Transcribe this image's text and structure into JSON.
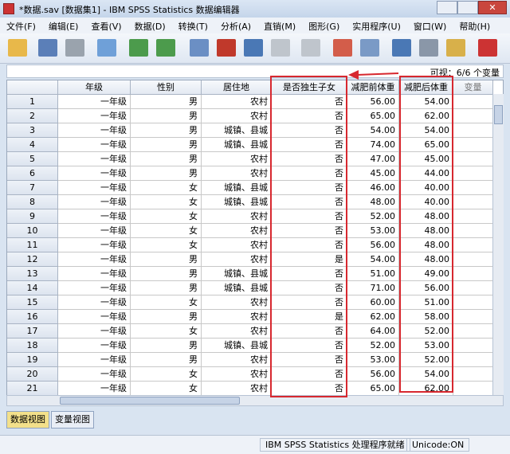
{
  "window": {
    "title": "*数据.sav [数据集1] - IBM SPSS Statistics 数据编辑器"
  },
  "menu": [
    "文件(F)",
    "编辑(E)",
    "查看(V)",
    "数据(D)",
    "转换(T)",
    "分析(A)",
    "直销(M)",
    "图形(G)",
    "实用程序(U)",
    "窗口(W)",
    "帮助(H)"
  ],
  "visible_label": "可视：6/6 个变量",
  "table": {
    "columns": [
      "年级",
      "性别",
      "居住地",
      "是否独生子女",
      "减肥前体重",
      "减肥后体重",
      "变量"
    ],
    "rows": [
      [
        1,
        "一年级",
        "男",
        "农村",
        "否",
        "56.00",
        "54.00"
      ],
      [
        2,
        "一年级",
        "男",
        "农村",
        "否",
        "65.00",
        "62.00"
      ],
      [
        3,
        "一年级",
        "男",
        "城镇、县城",
        "否",
        "54.00",
        "54.00"
      ],
      [
        4,
        "一年级",
        "男",
        "城镇、县城",
        "否",
        "74.00",
        "65.00"
      ],
      [
        5,
        "一年级",
        "男",
        "农村",
        "否",
        "47.00",
        "45.00"
      ],
      [
        6,
        "一年级",
        "男",
        "农村",
        "否",
        "45.00",
        "44.00"
      ],
      [
        7,
        "一年级",
        "女",
        "城镇、县城",
        "否",
        "46.00",
        "40.00"
      ],
      [
        8,
        "一年级",
        "女",
        "城镇、县城",
        "否",
        "48.00",
        "40.00"
      ],
      [
        9,
        "一年级",
        "女",
        "农村",
        "否",
        "52.00",
        "48.00"
      ],
      [
        10,
        "一年级",
        "女",
        "农村",
        "否",
        "53.00",
        "48.00"
      ],
      [
        11,
        "一年级",
        "女",
        "农村",
        "否",
        "56.00",
        "48.00"
      ],
      [
        12,
        "一年级",
        "男",
        "农村",
        "是",
        "54.00",
        "48.00"
      ],
      [
        13,
        "一年级",
        "男",
        "城镇、县城",
        "否",
        "51.00",
        "49.00"
      ],
      [
        14,
        "一年级",
        "男",
        "城镇、县城",
        "否",
        "71.00",
        "56.00"
      ],
      [
        15,
        "一年级",
        "女",
        "农村",
        "否",
        "60.00",
        "51.00"
      ],
      [
        16,
        "一年级",
        "男",
        "农村",
        "是",
        "62.00",
        "58.00"
      ],
      [
        17,
        "一年级",
        "女",
        "农村",
        "否",
        "64.00",
        "52.00"
      ],
      [
        18,
        "一年级",
        "男",
        "城镇、县城",
        "否",
        "52.00",
        "53.00"
      ],
      [
        19,
        "一年级",
        "男",
        "农村",
        "否",
        "53.00",
        "52.00"
      ],
      [
        20,
        "一年级",
        "女",
        "农村",
        "否",
        "56.00",
        "54.00"
      ],
      [
        21,
        "一年级",
        "女",
        "农村",
        "否",
        "65.00",
        "62.00"
      ]
    ]
  },
  "tabs": [
    "数据视图",
    "变量视图"
  ],
  "status": {
    "processor": "IBM SPSS Statistics 处理程序就绪",
    "encoding": "Unicode:ON"
  }
}
